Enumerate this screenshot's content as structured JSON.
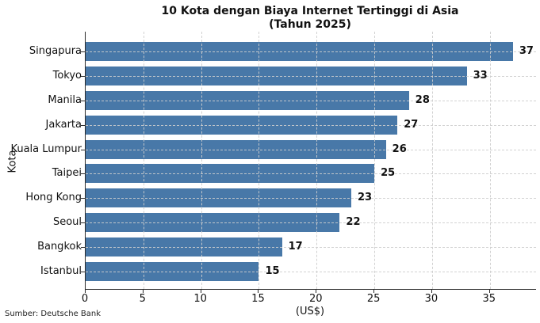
{
  "header": {
    "title": "10 Kota dengan Biaya Internet Tertinggi di Asia",
    "subtitle": "(Tahun 2025)"
  },
  "footer": {
    "source": "Sumber: Deutsche Bank"
  },
  "chart_data": {
    "type": "bar",
    "orientation": "horizontal",
    "title": "10 Kota dengan Biaya Internet Tertinggi di Asia",
    "subtitle": "(Tahun 2025)",
    "categories": [
      "Singapura",
      "Tokyo",
      "Manila",
      "Jakarta",
      "Kuala Lumpur",
      "Taipei",
      "Hong Kong",
      "Seoul",
      "Bangkok",
      "Istanbul"
    ],
    "values": [
      37,
      33,
      28,
      27,
      26,
      25,
      23,
      22,
      17,
      15
    ],
    "value_labels": [
      "37",
      "33",
      "28",
      "27",
      "26",
      "25",
      "23",
      "22",
      "17",
      "15"
    ],
    "xlabel": "(US$)",
    "ylabel": "Kota",
    "xticks": [
      0,
      5,
      10,
      15,
      20,
      25,
      30,
      35
    ],
    "xlim": [
      0,
      39
    ],
    "grid": "dashed, both axes",
    "legend": "none",
    "source": "Sumber: Deutsche Bank",
    "colors": {
      "bar": "#4878A8",
      "grid": "#CDCDCD",
      "spine": "#2B2B2B",
      "text": "#111111",
      "background": "#FFFFFF"
    }
  }
}
